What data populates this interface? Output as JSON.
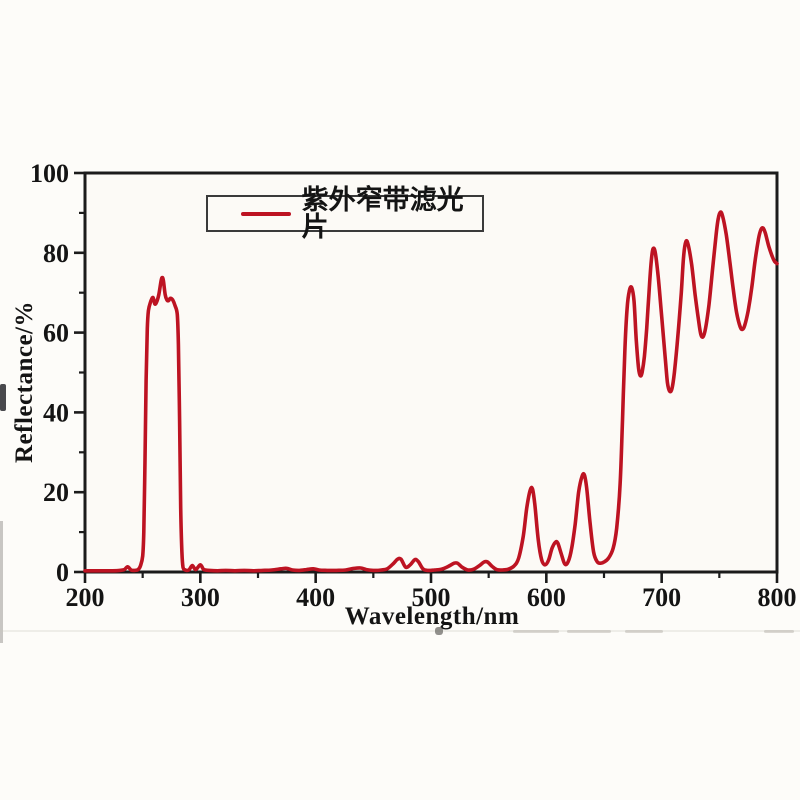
{
  "chart_data": {
    "type": "line",
    "title": "",
    "xlabel": "Wavelength/nm",
    "ylabel": "Reflectance/%",
    "xlim": [
      200,
      800
    ],
    "ylim": [
      0,
      100
    ],
    "x_ticks": [
      200,
      300,
      400,
      500,
      600,
      700,
      800
    ],
    "y_ticks": [
      0,
      20,
      40,
      60,
      80,
      100
    ],
    "minor_x_step": 50,
    "minor_y_step": 10,
    "grid": false,
    "legend_position": "top-left-inside",
    "axis_color": "#1b1b1b",
    "series": [
      {
        "name": "紫外窄带滤光片",
        "color": "#bd1322",
        "points": [
          [
            200,
            0.3
          ],
          [
            208,
            0.3
          ],
          [
            216,
            0.3
          ],
          [
            224,
            0.3
          ],
          [
            230,
            0.4
          ],
          [
            234,
            0.6
          ],
          [
            237,
            1.3
          ],
          [
            240,
            0.5
          ],
          [
            243,
            0.4
          ],
          [
            246,
            0.6
          ],
          [
            248,
            1.5
          ],
          [
            250,
            4
          ],
          [
            251,
            10
          ],
          [
            252,
            28
          ],
          [
            253,
            48
          ],
          [
            254,
            61
          ],
          [
            255,
            65.5
          ],
          [
            257,
            67.8
          ],
          [
            259,
            68.8
          ],
          [
            260.5,
            67.2
          ],
          [
            262,
            67.6
          ],
          [
            264,
            69.5
          ],
          [
            266,
            73
          ],
          [
            267,
            73.8
          ],
          [
            268,
            73
          ],
          [
            269.5,
            69.5
          ],
          [
            271,
            68.2
          ],
          [
            272.5,
            68
          ],
          [
            274,
            68.6
          ],
          [
            276,
            68.2
          ],
          [
            278,
            66.8
          ],
          [
            280,
            64.5
          ],
          [
            281,
            57
          ],
          [
            282,
            38
          ],
          [
            283,
            16
          ],
          [
            284,
            5
          ],
          [
            285,
            1.2
          ],
          [
            287,
            0.5
          ],
          [
            290,
            0.5
          ],
          [
            293,
            1.6
          ],
          [
            296,
            0.6
          ],
          [
            300,
            1.8
          ],
          [
            303,
            0.6
          ],
          [
            308,
            0.4
          ],
          [
            315,
            0.3
          ],
          [
            322,
            0.4
          ],
          [
            330,
            0.3
          ],
          [
            338,
            0.4
          ],
          [
            346,
            0.3
          ],
          [
            354,
            0.4
          ],
          [
            362,
            0.5
          ],
          [
            370,
            0.8
          ],
          [
            375,
            0.9
          ],
          [
            380,
            0.5
          ],
          [
            386,
            0.4
          ],
          [
            392,
            0.6
          ],
          [
            398,
            0.8
          ],
          [
            403,
            0.5
          ],
          [
            410,
            0.4
          ],
          [
            418,
            0.4
          ],
          [
            426,
            0.5
          ],
          [
            433,
            0.9
          ],
          [
            439,
            1.0
          ],
          [
            444,
            0.6
          ],
          [
            450,
            0.4
          ],
          [
            457,
            0.5
          ],
          [
            462,
            0.8
          ],
          [
            467,
            2
          ],
          [
            471,
            3.2
          ],
          [
            474,
            3.2
          ],
          [
            478,
            1.2
          ],
          [
            482,
            1.8
          ],
          [
            486,
            3.1
          ],
          [
            489,
            2.6
          ],
          [
            493,
            0.8
          ],
          [
            497,
            0.4
          ],
          [
            503,
            0.5
          ],
          [
            509,
            0.7
          ],
          [
            515,
            1.4
          ],
          [
            520,
            2.2
          ],
          [
            523,
            2.2
          ],
          [
            527,
            1.2
          ],
          [
            532,
            0.5
          ],
          [
            537,
            0.7
          ],
          [
            542,
            1.6
          ],
          [
            546,
            2.5
          ],
          [
            549,
            2.5
          ],
          [
            553,
            1.4
          ],
          [
            557,
            0.6
          ],
          [
            562,
            0.5
          ],
          [
            567,
            0.7
          ],
          [
            572,
            1.5
          ],
          [
            576,
            3.5
          ],
          [
            580,
            9
          ],
          [
            583,
            16
          ],
          [
            586,
            20.5
          ],
          [
            588,
            20.8
          ],
          [
            590,
            17
          ],
          [
            593,
            8
          ],
          [
            596,
            3
          ],
          [
            599,
            1.8
          ],
          [
            602,
            3
          ],
          [
            605,
            6
          ],
          [
            608,
            7.5
          ],
          [
            610,
            7.2
          ],
          [
            613,
            4.5
          ],
          [
            616,
            2
          ],
          [
            619,
            2.6
          ],
          [
            622,
            6
          ],
          [
            625,
            12
          ],
          [
            628,
            20
          ],
          [
            631,
            24
          ],
          [
            633,
            24.3
          ],
          [
            635,
            21
          ],
          [
            638,
            12
          ],
          [
            641,
            5
          ],
          [
            644,
            2.6
          ],
          [
            647,
            2.2
          ],
          [
            650,
            2.5
          ],
          [
            654,
            3.5
          ],
          [
            658,
            6
          ],
          [
            661,
            11
          ],
          [
            664,
            22
          ],
          [
            666,
            38
          ],
          [
            668,
            55
          ],
          [
            670,
            66
          ],
          [
            672,
            70.5
          ],
          [
            674,
            71.3
          ],
          [
            676,
            68
          ],
          [
            678,
            58
          ],
          [
            680,
            51
          ],
          [
            681.5,
            49.2
          ],
          [
            683,
            50
          ],
          [
            685,
            54
          ],
          [
            687,
            61
          ],
          [
            689,
            70
          ],
          [
            691,
            78
          ],
          [
            692.5,
            81
          ],
          [
            694.5,
            80
          ],
          [
            697,
            74
          ],
          [
            700,
            64
          ],
          [
            703,
            54
          ],
          [
            705,
            47.5
          ],
          [
            707,
            45.3
          ],
          [
            709,
            46
          ],
          [
            711,
            50
          ],
          [
            714,
            59
          ],
          [
            717,
            70
          ],
          [
            719,
            79
          ],
          [
            721,
            82.8
          ],
          [
            723,
            82
          ],
          [
            726,
            77
          ],
          [
            729,
            69.5
          ],
          [
            732,
            63
          ],
          [
            734,
            59.5
          ],
          [
            736,
            59
          ],
          [
            738,
            61
          ],
          [
            741,
            67
          ],
          [
            744,
            75.5
          ],
          [
            747,
            84
          ],
          [
            749,
            88.5
          ],
          [
            751,
            90.2
          ],
          [
            753,
            89
          ],
          [
            756,
            84.5
          ],
          [
            759,
            78
          ],
          [
            762,
            71
          ],
          [
            765,
            65
          ],
          [
            768,
            61.5
          ],
          [
            770,
            60.8
          ],
          [
            772,
            61.8
          ],
          [
            775,
            65.5
          ],
          [
            778,
            71
          ],
          [
            781,
            78
          ],
          [
            784,
            83.5
          ],
          [
            786,
            85.8
          ],
          [
            788,
            86.2
          ],
          [
            790,
            84.8
          ],
          [
            793,
            81.5
          ],
          [
            796,
            79
          ],
          [
            798,
            77.8
          ],
          [
            800,
            77.3
          ]
        ]
      }
    ]
  }
}
